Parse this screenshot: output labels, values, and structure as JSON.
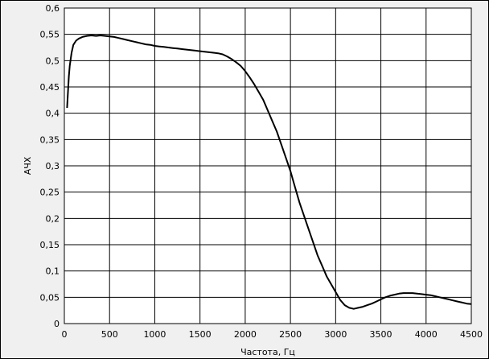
{
  "chart_data": {
    "type": "line",
    "title": "",
    "xlabel": "Частота, Гц",
    "ylabel": "АЧХ",
    "xlim": [
      0,
      4500
    ],
    "ylim": [
      0,
      0.6
    ],
    "grid": true,
    "legend": "none",
    "x_ticks": [
      "0",
      "500",
      "1000",
      "1500",
      "2000",
      "2500",
      "3000",
      "3500",
      "4000",
      "4500"
    ],
    "y_ticks": [
      "0",
      "0,05",
      "0,1",
      "0,15",
      "0,2",
      "0,25",
      "0,3",
      "0,35",
      "0,4",
      "0,45",
      "0,5",
      "0,55",
      "0,6"
    ],
    "colors": {
      "line": "#000000",
      "grid": "#000000",
      "plot_background": "#ffffff",
      "panel_background": "#f0f0f0"
    },
    "series": [
      {
        "x": [
          30,
          40,
          50,
          60,
          80,
          100,
          130,
          160,
          200,
          250,
          300,
          350,
          400,
          450,
          500,
          550,
          600,
          650,
          700,
          750,
          800,
          850,
          900,
          950,
          1000,
          1050,
          1100,
          1150,
          1200,
          1250,
          1300,
          1350,
          1400,
          1450,
          1500,
          1550,
          1600,
          1650,
          1700,
          1750,
          1800,
          1850,
          1900,
          1950,
          2000,
          2050,
          2100,
          2150,
          2200,
          2250,
          2300,
          2350,
          2400,
          2450,
          2500,
          2550,
          2600,
          2650,
          2700,
          2750,
          2800,
          2850,
          2900,
          2950,
          3000,
          3050,
          3100,
          3150,
          3200,
          3250,
          3300,
          3350,
          3400,
          3450,
          3500,
          3550,
          3600,
          3650,
          3700,
          3750,
          3800,
          3850,
          3900,
          3950,
          4000,
          4050,
          4100,
          4150,
          4200,
          4250,
          4300,
          4350,
          4400,
          4450,
          4500
        ],
        "values": [
          0.41,
          0.44,
          0.47,
          0.49,
          0.515,
          0.53,
          0.538,
          0.542,
          0.545,
          0.547,
          0.548,
          0.547,
          0.548,
          0.547,
          0.546,
          0.545,
          0.543,
          0.541,
          0.539,
          0.537,
          0.535,
          0.533,
          0.531,
          0.53,
          0.528,
          0.527,
          0.526,
          0.525,
          0.524,
          0.523,
          0.522,
          0.521,
          0.52,
          0.519,
          0.518,
          0.517,
          0.516,
          0.515,
          0.514,
          0.512,
          0.508,
          0.503,
          0.497,
          0.49,
          0.48,
          0.468,
          0.455,
          0.44,
          0.425,
          0.405,
          0.385,
          0.365,
          0.34,
          0.315,
          0.29,
          0.26,
          0.23,
          0.205,
          0.18,
          0.155,
          0.13,
          0.11,
          0.09,
          0.075,
          0.06,
          0.045,
          0.035,
          0.03,
          0.028,
          0.03,
          0.032,
          0.035,
          0.038,
          0.042,
          0.046,
          0.05,
          0.053,
          0.055,
          0.057,
          0.058,
          0.058,
          0.058,
          0.057,
          0.056,
          0.055,
          0.054,
          0.052,
          0.05,
          0.048,
          0.046,
          0.044,
          0.042,
          0.04,
          0.038,
          0.037
        ]
      }
    ]
  }
}
